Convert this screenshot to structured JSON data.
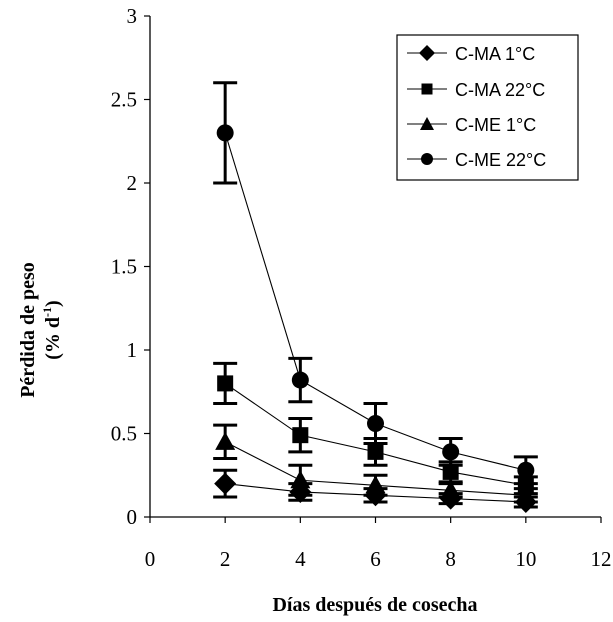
{
  "chart_data": {
    "type": "line",
    "xlabel": "Días después de cosecha",
    "ylabel_line1": "Pérdida de peso",
    "ylabel_line2": "(% d",
    "ylabel_sup": "-1",
    "ylabel_close": ")",
    "xlim": [
      0,
      12
    ],
    "ylim": [
      0,
      3
    ],
    "xticks": [
      0,
      2,
      4,
      6,
      8,
      10,
      12
    ],
    "yticks": [
      "0",
      "0.5",
      "1",
      "1.5",
      "2",
      "2.5",
      "3"
    ],
    "ytick_values": [
      0,
      0.5,
      1,
      1.5,
      2,
      2.5,
      3
    ],
    "x": [
      2,
      4,
      6,
      8,
      10
    ],
    "grid": false,
    "legend_position": "top-right",
    "series": [
      {
        "name": "C-MA 1°C",
        "marker": "diamond",
        "values": [
          0.2,
          0.15,
          0.13,
          0.11,
          0.09
        ],
        "errors": [
          0.08,
          0.05,
          0.04,
          0.03,
          0.03
        ]
      },
      {
        "name": "C-MA 22°C",
        "marker": "square",
        "values": [
          0.8,
          0.49,
          0.39,
          0.27,
          0.19
        ],
        "errors": [
          0.12,
          0.1,
          0.08,
          0.06,
          0.05
        ]
      },
      {
        "name": "C-ME 1°C",
        "marker": "triangle",
        "values": [
          0.45,
          0.22,
          0.19,
          0.16,
          0.13
        ],
        "errors": [
          0.1,
          0.09,
          0.06,
          0.04,
          0.04
        ]
      },
      {
        "name": "C-ME 22°C",
        "marker": "circle",
        "values": [
          2.3,
          0.82,
          0.56,
          0.39,
          0.28
        ],
        "errors": [
          0.3,
          0.13,
          0.12,
          0.08,
          0.08
        ]
      }
    ]
  }
}
